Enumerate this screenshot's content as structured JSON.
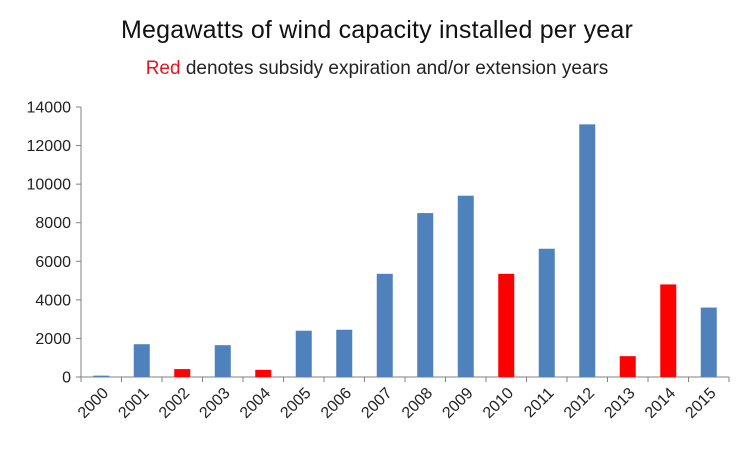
{
  "chart_data": {
    "type": "bar",
    "title": "Megawatts of wind capacity installed per year",
    "subtitle_highlight": "Red",
    "subtitle_rest": " denotes subsidy expiration and/or extension years",
    "xlabel": "",
    "ylabel": "",
    "ylim": [
      0,
      14000
    ],
    "yticks": [
      0,
      2000,
      4000,
      6000,
      8000,
      10000,
      12000,
      14000
    ],
    "grid": false,
    "legend": "none",
    "categories": [
      "2000",
      "2001",
      "2002",
      "2003",
      "2004",
      "2005",
      "2006",
      "2007",
      "2008",
      "2009",
      "2010",
      "2011",
      "2012",
      "2013",
      "2014",
      "2015"
    ],
    "values": [
      70,
      1700,
      410,
      1650,
      370,
      2400,
      2450,
      5350,
      8500,
      9400,
      5350,
      6650,
      13100,
      1080,
      4800,
      3600
    ],
    "highlighted": [
      "2002",
      "2004",
      "2010",
      "2013",
      "2014"
    ],
    "colors": {
      "default": "#4f81bd",
      "highlight": "#ff0000",
      "subtitle_highlight": "#e8141b"
    }
  }
}
